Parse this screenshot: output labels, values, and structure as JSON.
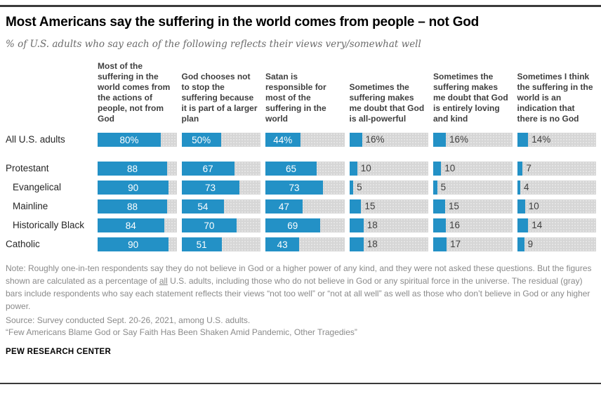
{
  "header": {
    "title": "Most Americans say the suffering in the world comes from people – not God",
    "subtitle": "% of U.S. adults who say each of the following reflects their views very/somewhat well"
  },
  "chart_data": {
    "type": "bar",
    "orientation": "horizontal",
    "unit": "% of U.S. adults",
    "xlim": [
      0,
      100
    ],
    "bar_color": "#2391c6",
    "track_color": "#d6d6d6",
    "value_label_inside_threshold": 30,
    "columns": [
      "Most of the suffering in the world comes from the actions of people, not from God",
      "God chooses not to stop the suffering because it is part of a larger plan",
      "Satan is responsible for most of the suffering in the world",
      "Sometimes the suffering makes me doubt that God is all-powerful",
      "Sometimes the suffering makes me doubt that God is entirely loving and kind",
      "Sometimes I think the suffering in the world is an indication that there is no God"
    ],
    "rows": [
      {
        "label": "All U.S. adults",
        "indent": false,
        "suffix": "%",
        "values": [
          80,
          50,
          44,
          16,
          16,
          14
        ]
      },
      {
        "label": "Protestant",
        "indent": false,
        "suffix": "",
        "values": [
          88,
          67,
          65,
          10,
          10,
          7
        ]
      },
      {
        "label": "Evangelical",
        "indent": true,
        "suffix": "",
        "values": [
          90,
          73,
          73,
          5,
          5,
          4
        ]
      },
      {
        "label": "Mainline",
        "indent": true,
        "suffix": "",
        "values": [
          88,
          54,
          47,
          15,
          15,
          10
        ]
      },
      {
        "label": "Historically Black",
        "indent": true,
        "suffix": "",
        "values": [
          84,
          70,
          69,
          18,
          16,
          14
        ]
      },
      {
        "label": "Catholic",
        "indent": false,
        "suffix": "",
        "values": [
          90,
          51,
          43,
          18,
          17,
          9
        ]
      }
    ]
  },
  "notes": {
    "note_part1": "Note: Roughly one-in-ten respondents say they do not believe in God or a higher power of any kind, and they were not asked these questions. But the figures shown are calculated as a percentage of ",
    "note_underlined": "all",
    "note_part2": " U.S. adults, including those who do not believe in God or any spiritual force in the universe. The residual (gray) bars include respondents who say each statement reflects their views “not too well” or “not at all well” as well as those who don’t believe in God or any higher power.",
    "source": "Source: Survey conducted Sept. 20-26, 2021, among U.S. adults.",
    "report": "“Few Americans Blame God or Say Faith Has Been Shaken Amid Pandemic, Other Tragedies”"
  },
  "footer": {
    "brand": "PEW RESEARCH CENTER"
  }
}
